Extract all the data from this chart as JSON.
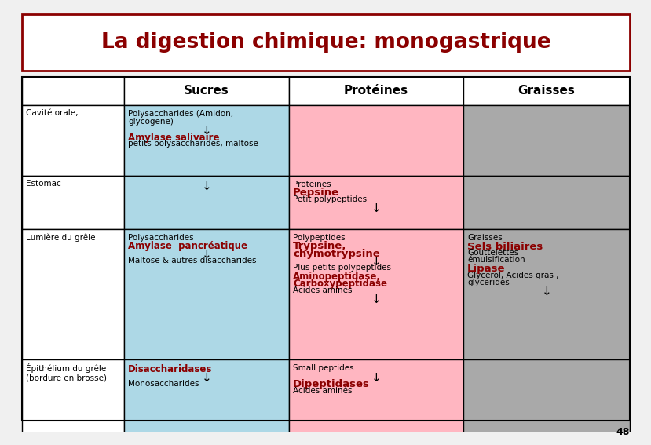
{
  "title": "La digestion chimique: monogastrique",
  "title_color": "#8B0000",
  "title_border_color": "#8B0000",
  "background": "#F0F0F0",
  "col_headers": [
    "Sucres",
    "Protéines",
    "Graisses"
  ],
  "row_headers": [
    "Cavité orale,",
    "Estomac",
    "Lumière du grêle",
    "Épithélium du grêle\n(bordure en brosse)"
  ],
  "col_colors": [
    "#ADD8E6",
    "#FFB6C1",
    "#A9A9A9"
  ],
  "white": "#FFFFFF",
  "dark_red": "#8B0000",
  "black": "#000000",
  "cell_contents": {
    "0_0": [
      {
        "text": "Polysaccharides (Amidon,",
        "color": "#000000",
        "bold": false,
        "size": 7.5,
        "arrow": false
      },
      {
        "text": "glycogene)",
        "color": "#000000",
        "bold": false,
        "size": 7.5,
        "arrow": false
      },
      {
        "text": "↓",
        "color": "#000000",
        "bold": false,
        "size": 11,
        "arrow": true
      },
      {
        "text": "Amylase salivaire",
        "color": "#8B0000",
        "bold": true,
        "size": 8.5,
        "arrow": false
      },
      {
        "text": "petits polysaccharides, maltose",
        "color": "#000000",
        "bold": false,
        "size": 7.5,
        "arrow": false
      }
    ],
    "0_1": [],
    "0_2": [],
    "1_0": [
      {
        "text": "↓",
        "color": "#000000",
        "bold": false,
        "size": 11,
        "arrow": true
      }
    ],
    "1_1": [
      {
        "text": "Proteines",
        "color": "#000000",
        "bold": false,
        "size": 7.5,
        "arrow": false
      },
      {
        "text": "Pepsine",
        "color": "#8B0000",
        "bold": true,
        "size": 9.5,
        "arrow": false
      },
      {
        "text": "Petit polypeptides",
        "color": "#000000",
        "bold": false,
        "size": 7.5,
        "arrow": false
      },
      {
        "text": "↓",
        "color": "#000000",
        "bold": false,
        "size": 11,
        "arrow": true
      }
    ],
    "1_2": [],
    "2_0": [
      {
        "text": "Polysaccharides",
        "color": "#000000",
        "bold": false,
        "size": 7.5,
        "arrow": false
      },
      {
        "text": "Amylase  pancréatique",
        "color": "#8B0000",
        "bold": true,
        "size": 8.5,
        "arrow": false
      },
      {
        "text": "↓",
        "color": "#000000",
        "bold": false,
        "size": 11,
        "arrow": true
      },
      {
        "text": "Maltose & autres disaccharides",
        "color": "#000000",
        "bold": false,
        "size": 7.5,
        "arrow": false
      }
    ],
    "2_1": [
      {
        "text": "Polypeptides",
        "color": "#000000",
        "bold": false,
        "size": 7.5,
        "arrow": false
      },
      {
        "text": "Trypsine,",
        "color": "#8B0000",
        "bold": true,
        "size": 9.5,
        "arrow": false
      },
      {
        "text": "chymotrypsine",
        "color": "#8B0000",
        "bold": true,
        "size": 9.5,
        "arrow": false
      },
      {
        "text": "↓",
        "color": "#000000",
        "bold": false,
        "size": 11,
        "arrow": true
      },
      {
        "text": "Plus petits polypeptides",
        "color": "#000000",
        "bold": false,
        "size": 7.5,
        "arrow": false
      },
      {
        "text": "Aminopeptidase,",
        "color": "#8B0000",
        "bold": true,
        "size": 8.5,
        "arrow": false
      },
      {
        "text": "Carboxypeptidase",
        "color": "#8B0000",
        "bold": true,
        "size": 8.5,
        "arrow": false
      },
      {
        "text": "Acides aminés",
        "color": "#000000",
        "bold": false,
        "size": 7.5,
        "arrow": false
      },
      {
        "text": "↓",
        "color": "#000000",
        "bold": false,
        "size": 11,
        "arrow": true
      }
    ],
    "2_2": [
      {
        "text": "Graisses",
        "color": "#000000",
        "bold": false,
        "size": 7.5,
        "arrow": false
      },
      {
        "text": "Sels biliaires",
        "color": "#8B0000",
        "bold": true,
        "size": 9.5,
        "arrow": false
      },
      {
        "text": "Gouttelettes",
        "color": "#000000",
        "bold": false,
        "size": 7.5,
        "arrow": false
      },
      {
        "text": "émulsification",
        "color": "#000000",
        "bold": false,
        "size": 7.5,
        "arrow": false
      },
      {
        "text": "Lipase",
        "color": "#8B0000",
        "bold": true,
        "size": 9.5,
        "arrow": false
      },
      {
        "text": "Glycerol, Acides gras ,",
        "color": "#000000",
        "bold": false,
        "size": 7.5,
        "arrow": false
      },
      {
        "text": "glycerides",
        "color": "#000000",
        "bold": false,
        "size": 7.5,
        "arrow": false
      },
      {
        "text": "↓",
        "color": "#000000",
        "bold": false,
        "size": 11,
        "arrow": true
      }
    ],
    "3_0": [
      {
        "text": "Disaccharidases",
        "color": "#8B0000",
        "bold": true,
        "size": 8.5,
        "arrow": false
      },
      {
        "text": "↓",
        "color": "#000000",
        "bold": false,
        "size": 11,
        "arrow": true
      },
      {
        "text": "Monosaccharides",
        "color": "#000000",
        "bold": false,
        "size": 7.5,
        "arrow": false
      }
    ],
    "3_1": [
      {
        "text": "Small peptides",
        "color": "#000000",
        "bold": false,
        "size": 7.5,
        "arrow": false
      },
      {
        "text": "↓",
        "color": "#000000",
        "bold": false,
        "size": 11,
        "arrow": true
      },
      {
        "text": "Dipeptidases",
        "color": "#8B0000",
        "bold": true,
        "size": 9.5,
        "arrow": false
      },
      {
        "text": "Acides aminés",
        "color": "#000000",
        "bold": false,
        "size": 7.5,
        "arrow": false
      }
    ],
    "3_2": []
  },
  "page_number": "48"
}
